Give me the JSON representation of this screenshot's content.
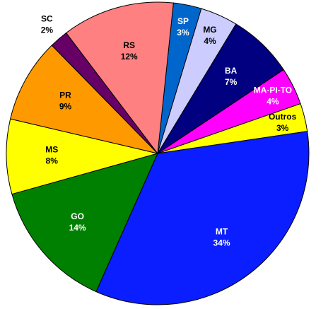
{
  "chart_data": {
    "type": "pie",
    "categories": [
      "SP",
      "MG",
      "BA",
      "MA-PI-TO",
      "Outros",
      "MT",
      "GO",
      "MS",
      "PR",
      "SC",
      "RS"
    ],
    "values": [
      3,
      4,
      7,
      4,
      3,
      34,
      14,
      8,
      9,
      2,
      12
    ],
    "value_labels": [
      "3%",
      "4%",
      "7%",
      "4%",
      "3%",
      "34%",
      "14%",
      "8%",
      "9%",
      "2%",
      "12%"
    ],
    "colors": [
      "#0066cc",
      "#ccccff",
      "#000080",
      "#ff00ff",
      "#ffff00",
      "#0a1eff",
      "#008000",
      "#ffff00",
      "#ff9900",
      "#660066",
      "#ff8080"
    ]
  }
}
